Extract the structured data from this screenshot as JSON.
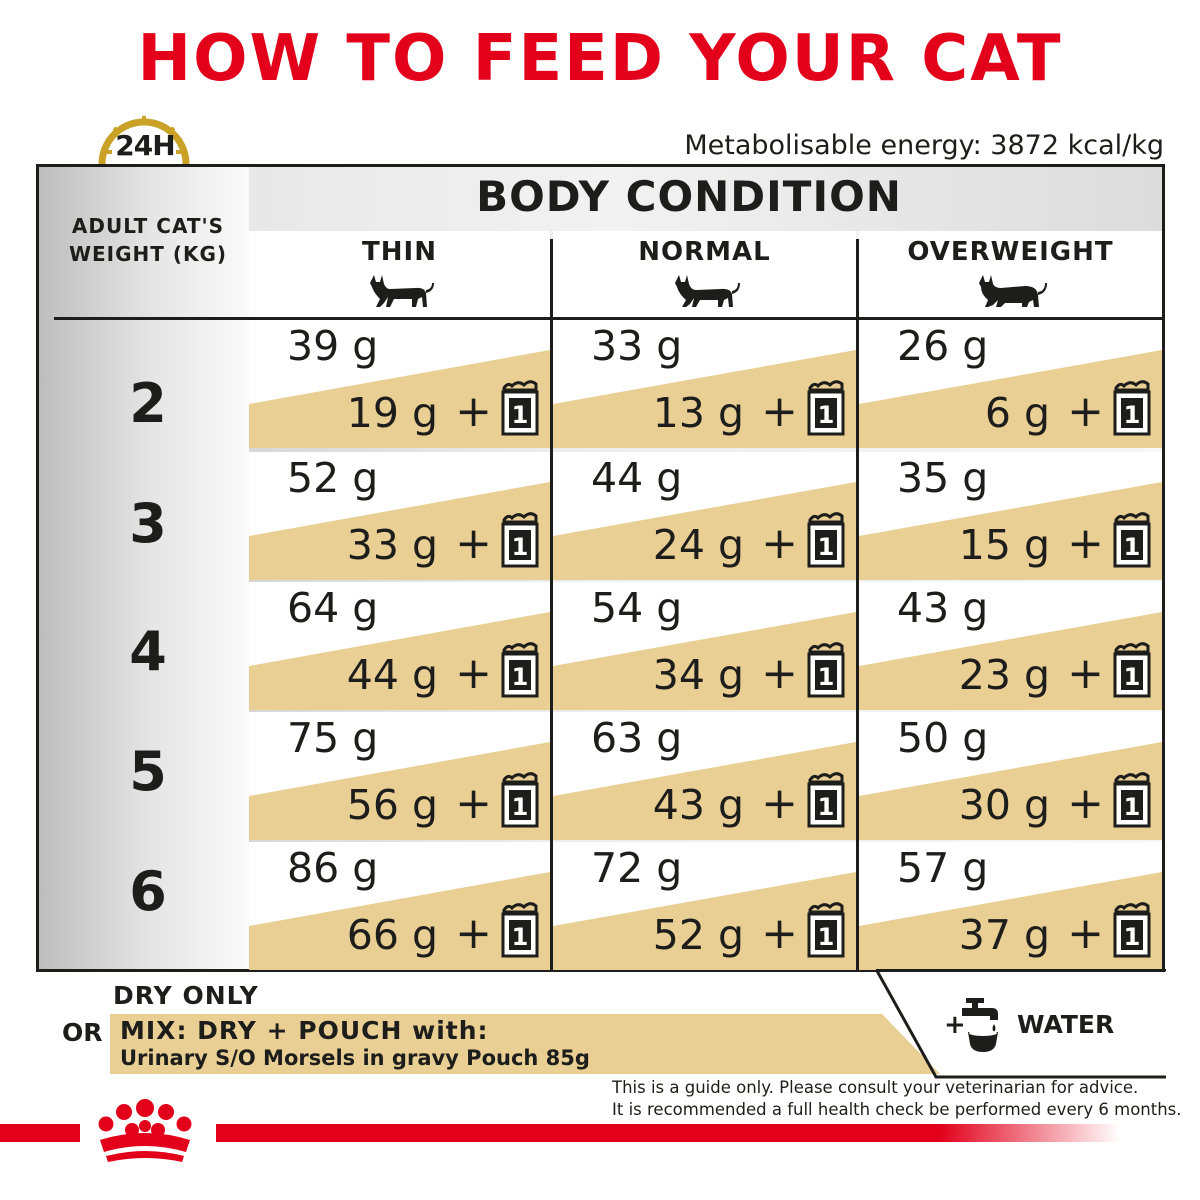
{
  "title": "HOW TO FEED YOUR CAT",
  "badge": "24H",
  "metabolisable_energy": "Metabolisable energy: 3872 kcal/kg",
  "table": {
    "section_title": "BODY CONDITION",
    "weight_header_line1": "ADULT CAT'S",
    "weight_header_line2": "WEIGHT (KG)",
    "columns": [
      "THIN",
      "NORMAL",
      "OVERWEIGHT"
    ],
    "pouch_count": "1",
    "plus": "+",
    "rows": [
      {
        "weight": "2",
        "cells": [
          {
            "dry": "39 g",
            "mix": "19 g"
          },
          {
            "dry": "33 g",
            "mix": "13 g"
          },
          {
            "dry": "26 g",
            "mix": "6 g"
          }
        ]
      },
      {
        "weight": "3",
        "cells": [
          {
            "dry": "52 g",
            "mix": "33 g"
          },
          {
            "dry": "44 g",
            "mix": "24 g"
          },
          {
            "dry": "35 g",
            "mix": "15 g"
          }
        ]
      },
      {
        "weight": "4",
        "cells": [
          {
            "dry": "64 g",
            "mix": "44 g"
          },
          {
            "dry": "54 g",
            "mix": "34 g"
          },
          {
            "dry": "43 g",
            "mix": "23 g"
          }
        ]
      },
      {
        "weight": "5",
        "cells": [
          {
            "dry": "75 g",
            "mix": "56 g"
          },
          {
            "dry": "63 g",
            "mix": "43 g"
          },
          {
            "dry": "50 g",
            "mix": "30 g"
          }
        ]
      },
      {
        "weight": "6",
        "cells": [
          {
            "dry": "86 g",
            "mix": "66 g"
          },
          {
            "dry": "72 g",
            "mix": "52 g"
          },
          {
            "dry": "57 g",
            "mix": "37 g"
          }
        ]
      }
    ]
  },
  "legend": {
    "dry_only": "DRY ONLY",
    "or": "OR",
    "mix_title": "MIX: DRY + POUCH with:",
    "mix_product": "Urinary S/O Morsels in gravy Pouch 85g",
    "water_plus": "+",
    "water": "WATER"
  },
  "disclaimer_line1": "This is a guide only. Please consult your veterinarian for advice.",
  "disclaimer_line2": "It is recommended a full health check be performed every 6 months.",
  "colors": {
    "brand_red": "#e2001a",
    "mix_band": "#e9cf94",
    "gold": "#c9a227",
    "ink": "#1d1d1b"
  },
  "icons": [
    "clock-icon",
    "cat-icon",
    "pouch-icon",
    "water-tap-icon",
    "crown-logo-icon"
  ]
}
